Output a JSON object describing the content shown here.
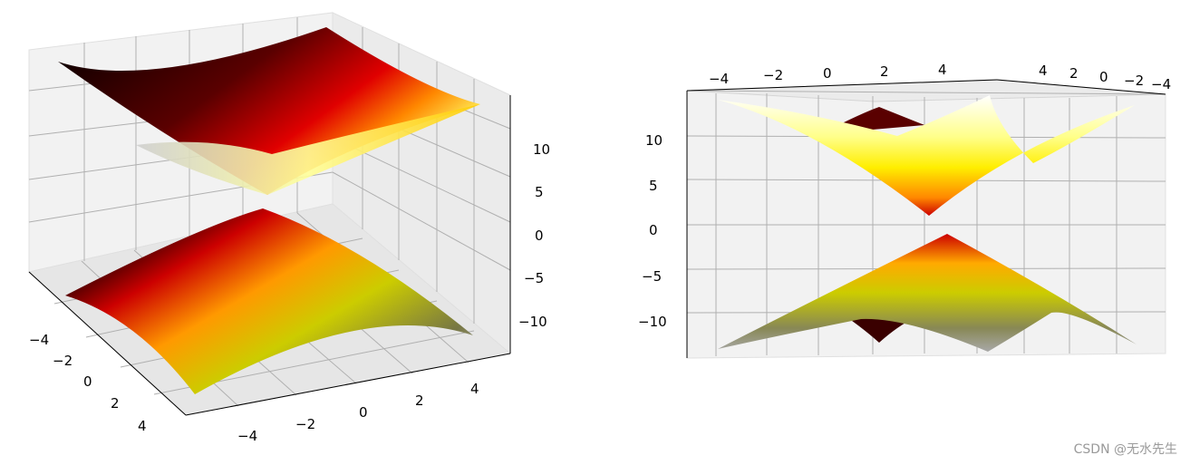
{
  "chart_data": [
    {
      "type": "surface3d",
      "title": "",
      "function": "z = ±sqrt(x² + y² + 4)",
      "x": [
        -5,
        -4,
        -3,
        -2,
        -1,
        0,
        1,
        2,
        3,
        4,
        5
      ],
      "y": [
        -5,
        -4,
        -3,
        -2,
        -1,
        0,
        1,
        2,
        3,
        4,
        5
      ],
      "xlim": [
        -5,
        5
      ],
      "ylim": [
        -5,
        5
      ],
      "zlim": [
        -14,
        14
      ],
      "x_ticks": [
        "−4",
        "−2",
        "0",
        "2",
        "4"
      ],
      "y_ticks": [
        "−4",
        "−2",
        "0",
        "2",
        "4"
      ],
      "z_ticks": [
        "10",
        "5",
        "0",
        "−5",
        "−10"
      ],
      "colormap": "hot",
      "series": [
        {
          "values_description": "upper sheet z = +sqrt(x²+y²+4)"
        },
        {
          "values_description": "lower sheet z = −sqrt(x²+y²+4)"
        }
      ],
      "grid": true
    },
    {
      "type": "surface3d",
      "title": "",
      "function": "z = ±sqrt(x² + y² + 4)",
      "x": [
        -5,
        -4,
        -3,
        -2,
        -1,
        0,
        1,
        2,
        3,
        4,
        5
      ],
      "y": [
        -5,
        -4,
        -3,
        -2,
        -1,
        0,
        1,
        2,
        3,
        4,
        5
      ],
      "xlim": [
        -5,
        5
      ],
      "ylim": [
        -5,
        5
      ],
      "zlim": [
        -14,
        14
      ],
      "x_ticks": [
        "−4",
        "−2",
        "0",
        "2",
        "4"
      ],
      "y_ticks": [
        "4",
        "2",
        "0",
        "−2",
        "−4"
      ],
      "z_ticks": [
        "10",
        "5",
        "0",
        "−5",
        "−10"
      ],
      "colormap": "hot",
      "grid": true
    }
  ],
  "watermark": "CSDN @无水先生"
}
